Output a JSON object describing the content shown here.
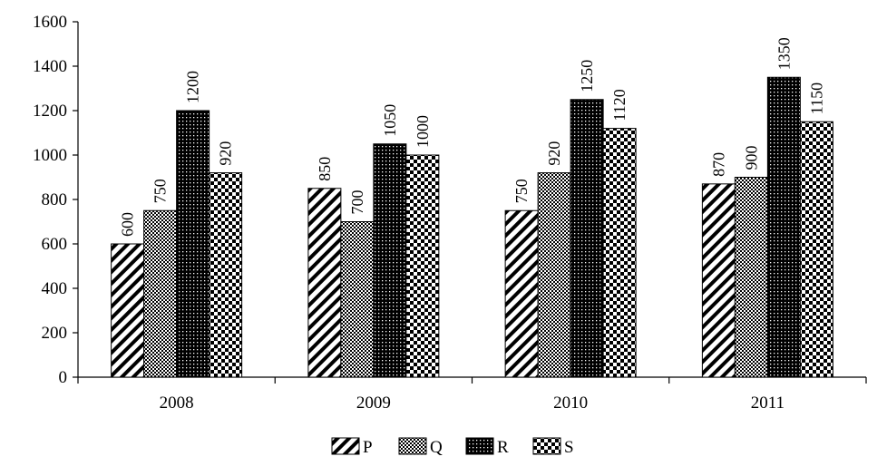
{
  "chart_data": {
    "type": "bar",
    "title": "",
    "xlabel": "",
    "ylabel": "",
    "categories": [
      "2008",
      "2009",
      "2010",
      "2011"
    ],
    "ylim": [
      0,
      1600
    ],
    "yticks": [
      0,
      200,
      400,
      600,
      800,
      1000,
      1200,
      1400,
      1600
    ],
    "grid": false,
    "legend_position": "bottom",
    "series": [
      {
        "name": "P",
        "values": [
          600,
          850,
          750,
          870
        ],
        "pattern": "diagonal-hatch"
      },
      {
        "name": "Q",
        "values": [
          750,
          700,
          920,
          900
        ],
        "pattern": "fine-dots"
      },
      {
        "name": "R",
        "values": [
          1200,
          1050,
          1250,
          1350
        ],
        "pattern": "dense-dark"
      },
      {
        "name": "S",
        "values": [
          920,
          1000,
          1120,
          1150
        ],
        "pattern": "checkerboard"
      }
    ]
  }
}
